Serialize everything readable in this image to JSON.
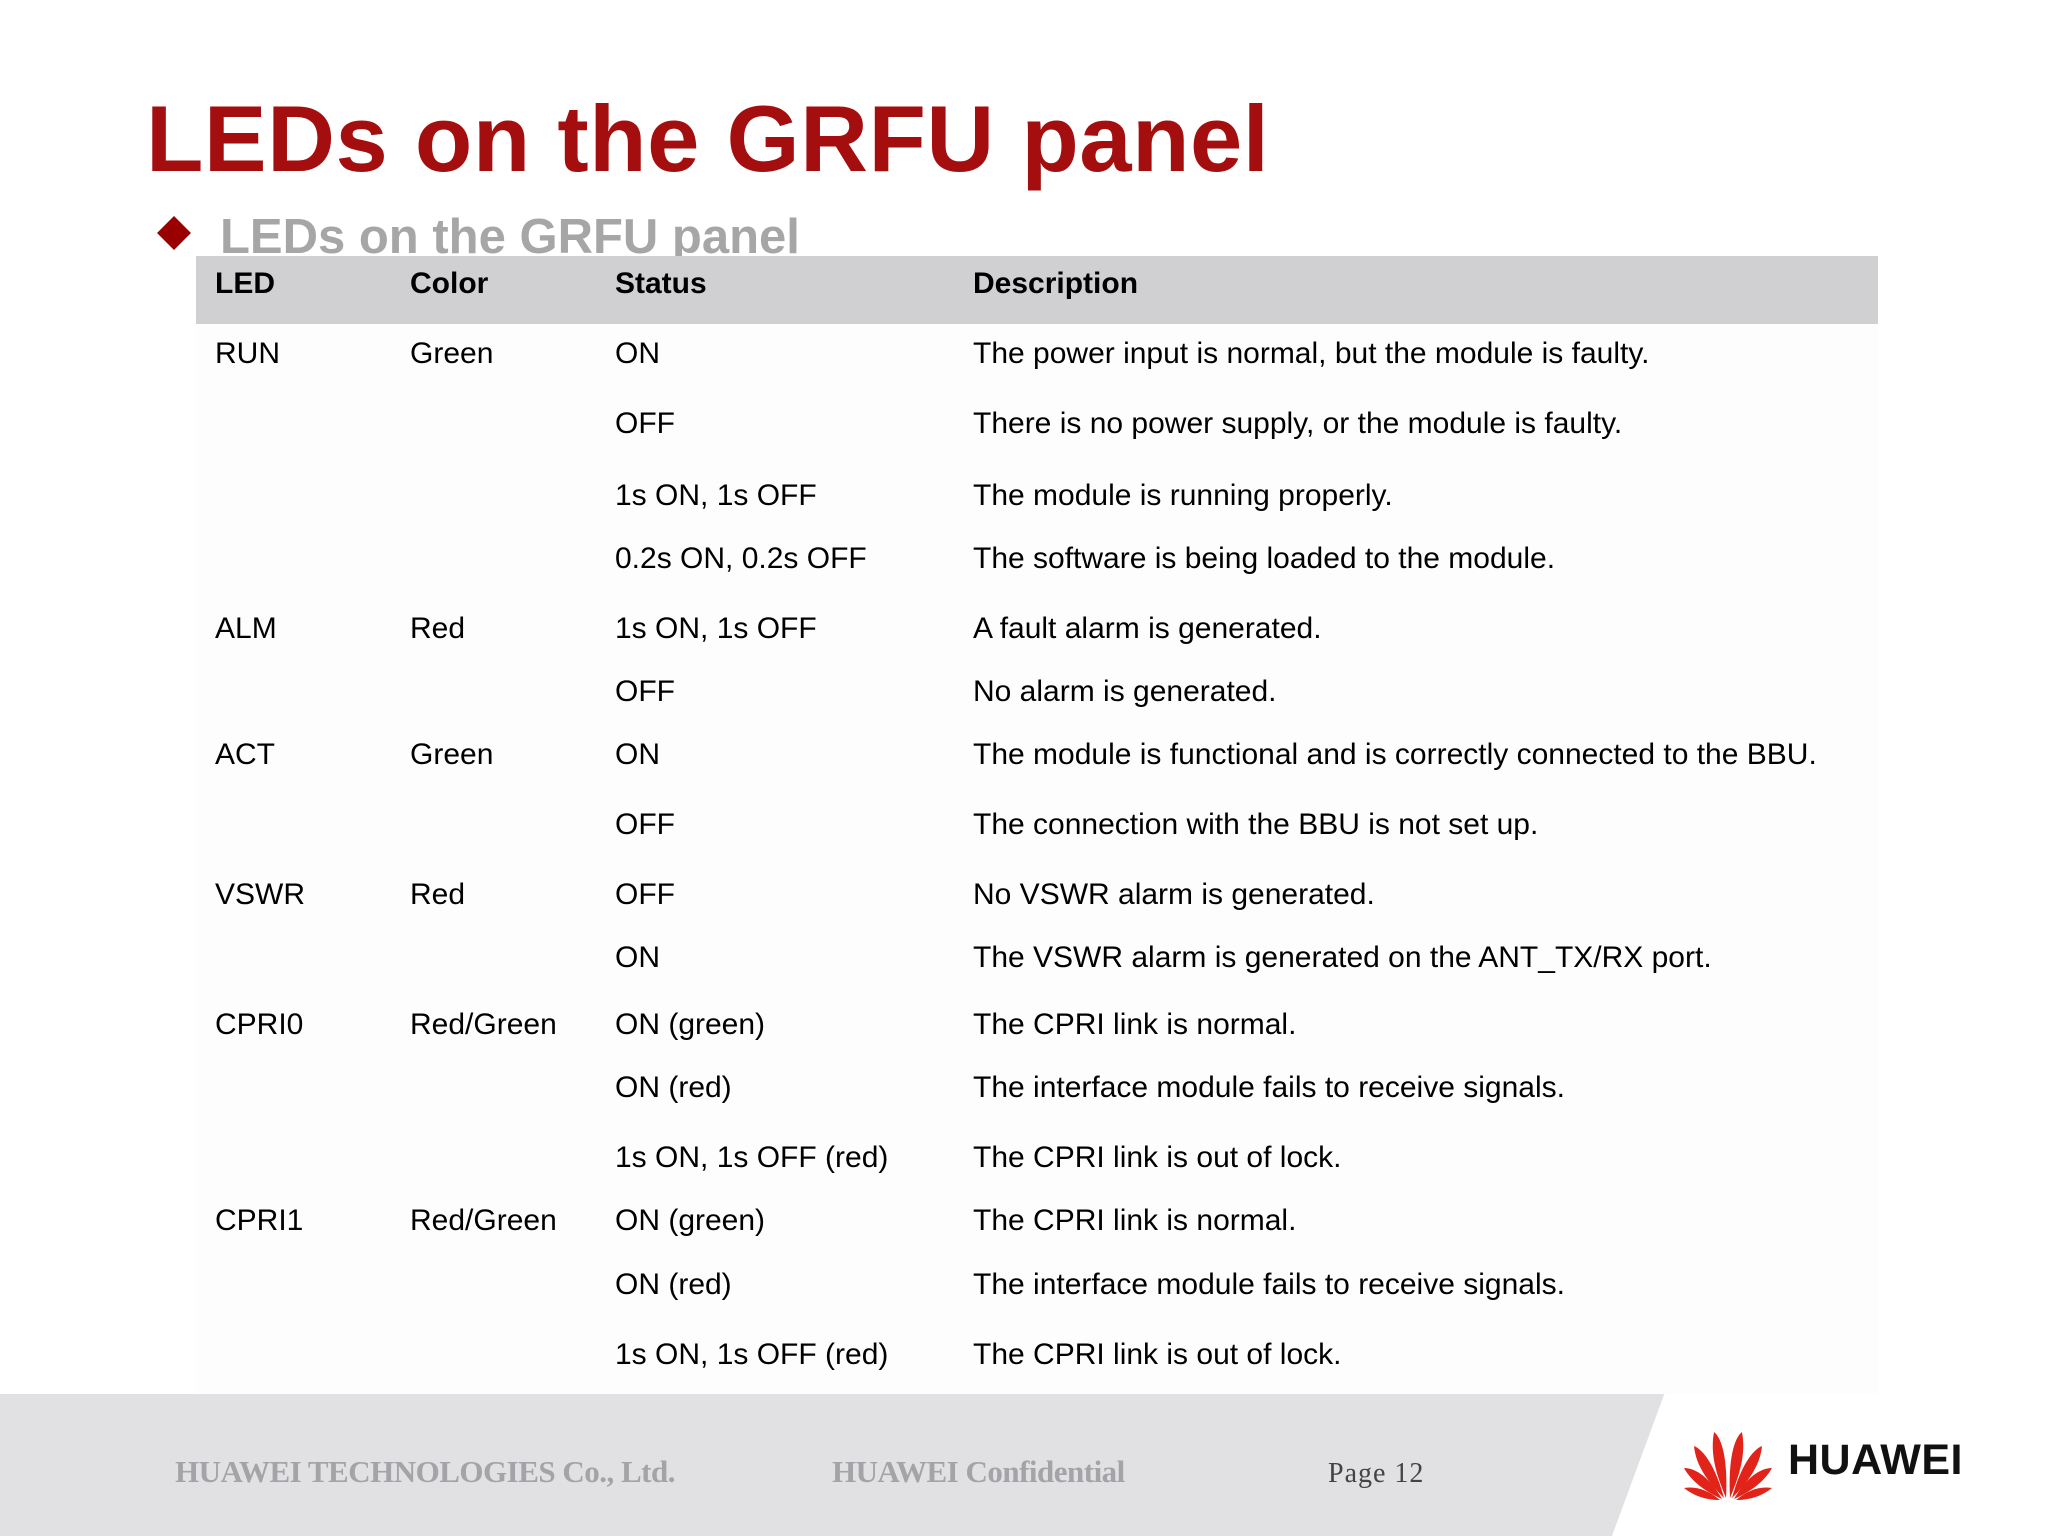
{
  "title": "LEDs on the GRFU panel",
  "subtitle": "LEDs on the GRFU panel",
  "table": {
    "headers": [
      "LED",
      "Color",
      "Status",
      "Description"
    ],
    "rows": [
      {
        "led": "RUN",
        "color": "Green",
        "status": "ON",
        "description": "The power input is normal, but the module is faulty."
      },
      {
        "led": "",
        "color": "",
        "status": "OFF",
        "description": "There is no power supply, or the module is faulty."
      },
      {
        "led": "",
        "color": "",
        "status": "1s ON, 1s OFF",
        "description": "The module is running properly."
      },
      {
        "led": "",
        "color": "",
        "status": "0.2s ON, 0.2s OFF",
        "description": "The software is being loaded to the module."
      },
      {
        "led": "ALM",
        "color": "Red",
        "status": "1s ON, 1s OFF",
        "description": "A fault alarm is generated."
      },
      {
        "led": "",
        "color": "",
        "status": "OFF",
        "description": "No alarm is generated."
      },
      {
        "led": "ACT",
        "color": "Green",
        "status": "ON",
        "description": "The module is functional and is correctly connected to the BBU."
      },
      {
        "led": "",
        "color": "",
        "status": "OFF",
        "description": "The connection with the BBU is not set up."
      },
      {
        "led": "VSWR",
        "color": "Red",
        "status": "OFF",
        "description": "No VSWR alarm is generated."
      },
      {
        "led": "",
        "color": "",
        "status": "ON",
        "description": "The VSWR alarm is generated on the ANT_TX/RX port."
      },
      {
        "led": "CPRI0",
        "color": "Red/Green",
        "status": "ON (green)",
        "description": "The CPRI link is normal."
      },
      {
        "led": "",
        "color": "",
        "status": "ON (red)",
        "description": "The interface module fails to receive signals."
      },
      {
        "led": "",
        "color": "",
        "status": "1s ON, 1s OFF (red)",
        "description": "The CPRI link is out of lock."
      },
      {
        "led": "CPRI1",
        "color": "Red/Green",
        "status": "ON (green)",
        "description": "The CPRI link is normal."
      },
      {
        "led": "",
        "color": "",
        "status": "ON (red)",
        "description": "The interface module fails to receive signals."
      },
      {
        "led": "",
        "color": "",
        "status": "1s ON, 1s OFF (red)",
        "description": "The CPRI link is out of lock."
      }
    ]
  },
  "footer": {
    "company": "HUAWEI TECHNOLOGIES Co., Ltd.",
    "confidential": "HUAWEI Confidential",
    "page": "Page 12",
    "logo_text": "HUAWEI"
  },
  "colors": {
    "title": "#a50e0e",
    "bullet": "#990000",
    "subtitle": "#a6a6a6",
    "table_header_bg": "#d0cfd1",
    "logo_red": "#e2231a"
  }
}
